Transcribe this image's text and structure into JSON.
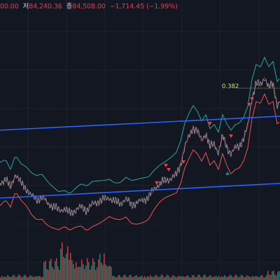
{
  "ohlc": {
    "open_value_partial": "00.00",
    "low_label": "저",
    "low_value": "84,240.36",
    "close_label": "종",
    "close_value": "84,508.00",
    "change": "−1,714.45 (−1.99%)"
  },
  "fib_label": "0.382",
  "colors": {
    "background": "#131722",
    "grid": "#1e222d",
    "trendline": "#2962ff",
    "upper_band": "#26a69a",
    "lower_band": "#ef5350",
    "price": "#b2b5be",
    "volume_up": "#26a69a",
    "volume_down": "#ef5350",
    "marker_down": "#f23645",
    "marker_up": "#089981",
    "fib": "#c9e265"
  }
}
